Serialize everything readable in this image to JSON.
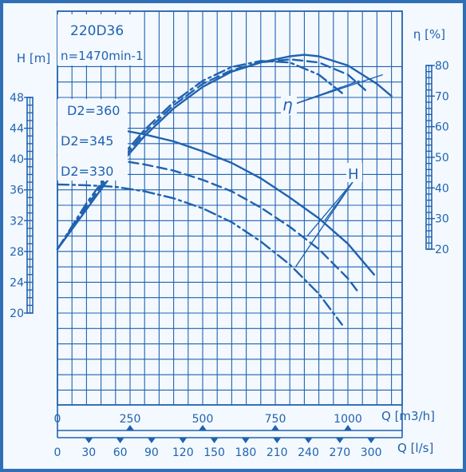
{
  "chart_data": {
    "type": "line",
    "title": "220D36",
    "subtitle": "n=1470min-1",
    "xlabel": "Q [m3/h]",
    "xlabel2": "Q [l/s]",
    "ylabel_left": "H [m]",
    "ylabel_right": "η [%]",
    "xlim": [
      0,
      1200
    ],
    "ylim_left": [
      20,
      52
    ],
    "ylim_right": [
      20,
      85
    ],
    "x_ticks_m3h": [
      "0",
      "250",
      "500",
      "750",
      "1000"
    ],
    "x_ticks_ls": [
      "0",
      "30",
      "60",
      "90",
      "120",
      "150",
      "180",
      "210",
      "240",
      "270",
      "300"
    ],
    "y_ticks_left": [
      "20",
      "24",
      "28",
      "32",
      "36",
      "40",
      "44",
      "48"
    ],
    "y_ticks_right": [
      "20",
      "30",
      "40",
      "50",
      "60",
      "70",
      "80"
    ],
    "annotation_eta": "η",
    "annotation_h": "H",
    "series": [
      {
        "name": "D2=360",
        "axis": "H",
        "dash": "solid",
        "x": [
          0,
          100,
          200,
          300,
          400,
          500,
          600,
          700,
          800,
          900,
          1000,
          1090
        ],
        "y": [
          44.5,
          44.3,
          43.9,
          43.2,
          42.3,
          41.0,
          39.5,
          37.5,
          35.0,
          32.3,
          29.0,
          25.0
        ]
      },
      {
        "name": "D2=345",
        "axis": "H",
        "dash": "dashed",
        "x": [
          0,
          100,
          200,
          300,
          400,
          500,
          600,
          700,
          800,
          900,
          1000,
          1040
        ],
        "y": [
          40.5,
          40.3,
          39.9,
          39.3,
          38.5,
          37.3,
          35.8,
          33.7,
          31.2,
          28.3,
          24.5,
          22.5
        ]
      },
      {
        "name": "D2=330",
        "axis": "H",
        "dash": "dashdot",
        "x": [
          0,
          100,
          200,
          300,
          400,
          500,
          600,
          700,
          800,
          900,
          980
        ],
        "y": [
          36.7,
          36.6,
          36.4,
          35.8,
          34.9,
          33.6,
          31.8,
          29.3,
          26.3,
          22.5,
          18.5
        ]
      },
      {
        "name": "η D2=360",
        "axis": "eta",
        "dash": "solid",
        "x": [
          0,
          100,
          200,
          300,
          400,
          500,
          600,
          700,
          800,
          850,
          900,
          1000,
          1100,
          1150
        ],
        "y": [
          20,
          33,
          46,
          57,
          66,
          73,
          78,
          81,
          83,
          83.5,
          83,
          80,
          74,
          70
        ]
      },
      {
        "name": "η D2=345",
        "axis": "eta",
        "dash": "dashed",
        "x": [
          0,
          100,
          200,
          300,
          400,
          500,
          600,
          700,
          800,
          900,
          1000,
          1060
        ],
        "y": [
          20,
          34,
          47,
          58,
          67,
          74,
          78.5,
          81,
          82,
          81,
          77,
          72
        ]
      },
      {
        "name": "η D2=330",
        "axis": "eta",
        "dash": "dashdot",
        "x": [
          0,
          100,
          200,
          300,
          400,
          500,
          600,
          700,
          800,
          900,
          980
        ],
        "y": [
          20,
          35,
          48,
          59,
          68,
          75,
          79.5,
          81.5,
          81,
          77,
          71
        ]
      }
    ],
    "curve_labels": [
      "D2=360",
      "D2=345",
      "D2=330"
    ],
    "grid": true
  },
  "colors": {
    "ink": "#1f62b0",
    "paper": "#f4f9ff",
    "frame": "#2f6fb6"
  }
}
